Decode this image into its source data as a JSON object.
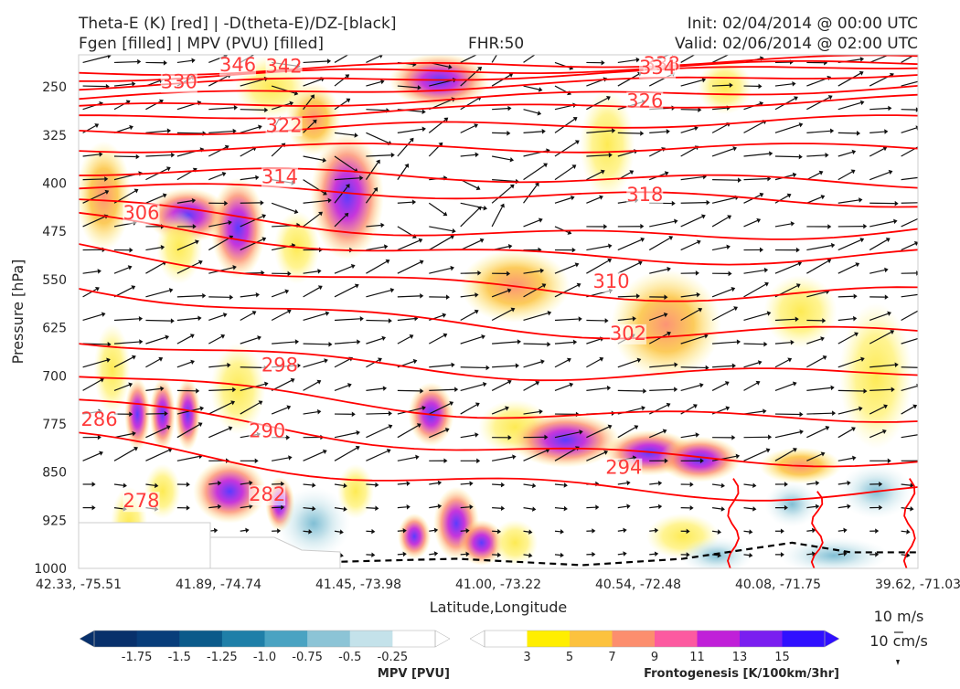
{
  "header": {
    "title_left_1": "Theta-E (K) [red] | -D(theta-E)/DZ-[black]",
    "title_left_2": "Fgen [filled] | MPV (PVU) [filled]",
    "title_center": "FHR:50",
    "title_right_1": "Init: 02/04/2014 @ 00:00 UTC",
    "title_right_2": "Valid: 02/06/2014 @ 02:00 UTC"
  },
  "chart_data": {
    "type": "cross-section",
    "xlabel": "Latitude,Longitude",
    "ylabel": "Pressure [hPa]",
    "ylim": [
      1000,
      200
    ],
    "y_ticks": [
      250,
      325,
      400,
      475,
      550,
      625,
      700,
      775,
      850,
      925,
      1000
    ],
    "x_ticks": [
      "42.33, -75.51",
      "41.89, -74.74",
      "41.45, -73.98",
      "41.00, -73.22",
      "40.54, -72.48",
      "40.08, -71.75",
      "39.62, -71.03"
    ],
    "theta_e_contours": {
      "color": "#ff0000",
      "labels": [
        {
          "value": "346",
          "x": 0.17,
          "p": 216
        },
        {
          "value": "342",
          "x": 0.225,
          "p": 218
        },
        {
          "value": "338",
          "x": 0.675,
          "p": 214
        },
        {
          "value": "334",
          "x": 0.67,
          "p": 220
        },
        {
          "value": "330",
          "x": 0.1,
          "p": 242
        },
        {
          "value": "326",
          "x": 0.655,
          "p": 272
        },
        {
          "value": "322",
          "x": 0.225,
          "p": 310
        },
        {
          "value": "318",
          "x": 0.655,
          "p": 418
        },
        {
          "value": "314",
          "x": 0.22,
          "p": 390
        },
        {
          "value": "310",
          "x": 0.615,
          "p": 553
        },
        {
          "value": "306",
          "x": 0.055,
          "p": 446
        },
        {
          "value": "302",
          "x": 0.635,
          "p": 634
        },
        {
          "value": "298",
          "x": 0.22,
          "p": 683
        },
        {
          "value": "294",
          "x": 0.63,
          "p": 843
        },
        {
          "value": "290",
          "x": 0.205,
          "p": 786
        },
        {
          "value": "286",
          "x": 0.005,
          "p": 768
        },
        {
          "value": "282",
          "x": 0.205,
          "p": 885
        },
        {
          "value": "278",
          "x": 0.055,
          "p": 895
        }
      ]
    },
    "mpv_colorbar": {
      "label": "MPV [PVU]",
      "ticks": [
        "-1.75",
        "-1.5",
        "-1.25",
        "-1.0",
        "-0.75",
        "-0.5",
        "-0.25"
      ],
      "colors": [
        "#08306b",
        "#083d7a",
        "#0b5a8a",
        "#1f7fa8",
        "#4aa3c2",
        "#8cc4d6",
        "#c4e2ea",
        "#ffffff"
      ]
    },
    "fgen_colorbar": {
      "label": "Frontogenesis [K/100km/3hr]",
      "ticks": [
        "3",
        "5",
        "7",
        "9",
        "11",
        "13",
        "15"
      ],
      "colors": [
        "#ffffff",
        "#ffee00",
        "#fcc23e",
        "#fc8e6e",
        "#fc5aa0",
        "#c020d8",
        "#7a1ef0",
        "#3010ff"
      ]
    },
    "wind_reference": {
      "horizontal": "10 m/s",
      "vertical": "10 cm/s"
    }
  }
}
